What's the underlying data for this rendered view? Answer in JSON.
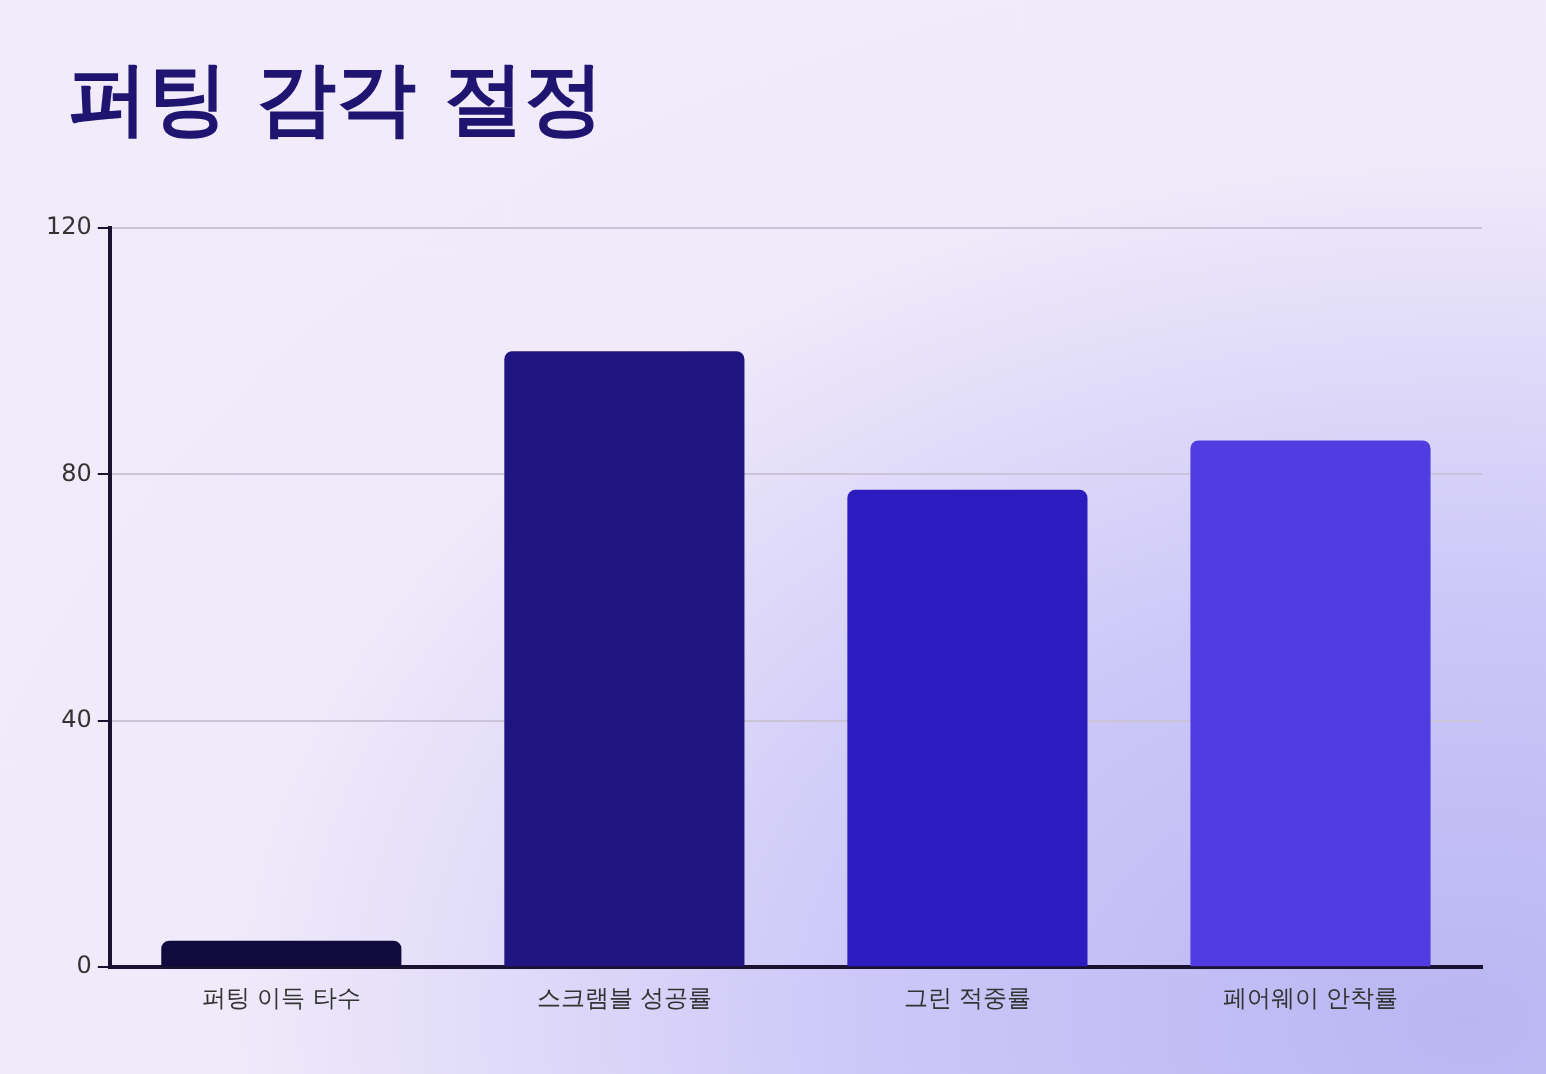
{
  "chart_data": {
    "type": "bar",
    "title": "퍼팅 감각 절정",
    "categories": [
      "퍼팅 이득 타수",
      "스크램블 성공률",
      "그린 적중률",
      "페어웨이 안착률"
    ],
    "values": [
      4.3,
      100,
      77.5,
      85.5
    ],
    "colors": [
      "#110a3d",
      "#1f1480",
      "#2c1bbf",
      "#503ce0"
    ],
    "ylim": [
      0,
      120
    ],
    "yticks": [
      0,
      40,
      80,
      120
    ],
    "grid": "y",
    "legend": false
  }
}
